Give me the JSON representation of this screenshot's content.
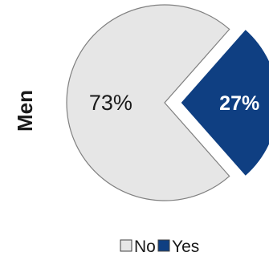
{
  "chart_data": {
    "type": "pie",
    "ylabel": "Men",
    "slices": [
      {
        "label": "No",
        "value": 73,
        "display": "73%",
        "color": "#e6e6e6",
        "text_color": "#1a1a1a",
        "text_weight": "normal",
        "exploded": false
      },
      {
        "label": "Yes",
        "value": 27,
        "display": "27%",
        "color": "#0f3f82",
        "text_color": "#ffffff",
        "text_weight": "bold",
        "exploded": true
      }
    ],
    "legend": {
      "placement": "bottom",
      "entries": [
        {
          "label": "No",
          "color": "#e6e6e6"
        },
        {
          "label": "Yes",
          "color": "#0f3f82"
        }
      ]
    }
  }
}
